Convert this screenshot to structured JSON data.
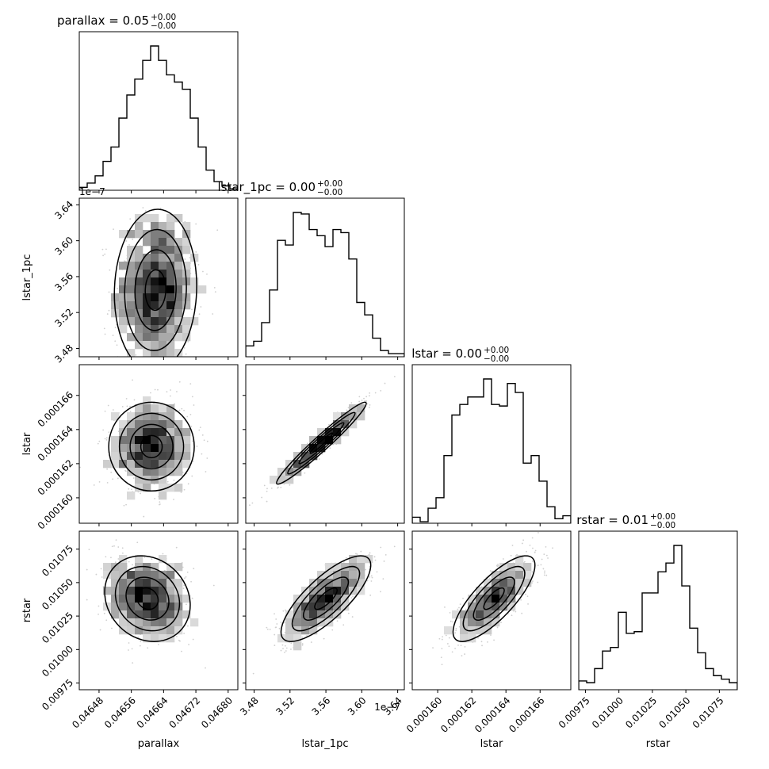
{
  "chart_data": {
    "type": "corner",
    "parameters": [
      "parallax",
      "lstar_1pc",
      "lstar",
      "rstar"
    ],
    "titles": [
      {
        "name": "parallax",
        "median": "0.05",
        "plus": "+0.00",
        "minus": "−0.00"
      },
      {
        "name": "lstar_1pc",
        "median": "0.00",
        "plus": "+0.00",
        "minus": "−0.00"
      },
      {
        "name": "lstar",
        "median": "0.00",
        "plus": "+0.00",
        "minus": "−0.00"
      },
      {
        "name": "rstar",
        "median": "0.01",
        "plus": "+0.00",
        "minus": "−0.00"
      }
    ],
    "axis_labels": [
      "parallax",
      "lstar_1pc",
      "lstar",
      "rstar"
    ],
    "offset_text": "1e−7",
    "ranges": [
      [
        0.046431,
        0.046824
      ],
      [
        3.4707e-07,
        3.6474e-07
      ],
      [
        0.00015851,
        0.0001678
      ],
      [
        0.0097,
        0.010884
      ]
    ],
    "ticks": [
      {
        "values": [
          0.04648,
          0.04656,
          0.04664,
          0.04672,
          0.0468
        ],
        "labels": [
          "0.04648",
          "0.04656",
          "0.04664",
          "0.04672",
          "0.04680"
        ]
      },
      {
        "values": [
          3.48,
          3.52,
          3.56,
          3.6,
          3.64
        ],
        "labels": [
          "3.48",
          "3.52",
          "3.56",
          "3.60",
          "3.64"
        ]
      },
      {
        "values": [
          0.00016,
          0.000162,
          0.000164,
          0.000166
        ],
        "labels": [
          "0.000160",
          "0.000162",
          "0.000164",
          "0.000166"
        ]
      },
      {
        "values": [
          0.00975,
          0.01,
          0.01025,
          0.0105,
          0.01075
        ],
        "labels": [
          "0.00975",
          "0.01000",
          "0.01025",
          "0.01050",
          "0.01075"
        ]
      }
    ],
    "histograms": [
      {
        "parameter": "parallax",
        "bins": 20,
        "heights": [
          0.02,
          0.05,
          0.1,
          0.2,
          0.3,
          0.5,
          0.66,
          0.77,
          0.9,
          1.0,
          0.9,
          0.8,
          0.75,
          0.7,
          0.5,
          0.3,
          0.14,
          0.06,
          0.03,
          0.01
        ]
      },
      {
        "parameter": "lstar_1pc",
        "bins": 20,
        "heights": [
          0.07,
          0.1,
          0.22,
          0.43,
          0.75,
          0.72,
          0.93,
          0.92,
          0.82,
          0.78,
          0.71,
          0.82,
          0.8,
          0.63,
          0.35,
          0.27,
          0.12,
          0.04,
          0.02,
          0.02
        ]
      },
      {
        "parameter": "lstar",
        "bins": 20,
        "heights": [
          0.04,
          0.01,
          0.1,
          0.17,
          0.45,
          0.72,
          0.79,
          0.84,
          0.84,
          0.96,
          0.79,
          0.78,
          0.93,
          0.87,
          0.4,
          0.45,
          0.28,
          0.11,
          0.03,
          0.05
        ]
      },
      {
        "parameter": "rstar",
        "bins": 20,
        "heights": [
          0.05,
          0.04,
          0.12,
          0.22,
          0.24,
          0.44,
          0.32,
          0.33,
          0.55,
          0.55,
          0.67,
          0.72,
          0.82,
          0.59,
          0.35,
          0.21,
          0.12,
          0.08,
          0.06,
          0.04
        ]
      }
    ],
    "pairs": [
      {
        "x": "parallax",
        "y": "lstar_1pc",
        "center": [
          0.04662,
          3.545e-07
        ],
        "spread": [
          5.1e-05,
          4.5e-09
        ],
        "correlation": 0.05
      },
      {
        "x": "parallax",
        "y": "lstar",
        "center": [
          0.04661,
          0.000163
        ],
        "spread": [
          5.3e-05,
          1.3e-06
        ],
        "correlation": 0.0
      },
      {
        "x": "lstar_1pc",
        "y": "lstar",
        "center": [
          3.555e-07,
          0.0001632
        ],
        "spread": [
          2.5e-09,
          1.2e-06
        ],
        "correlation": 0.97
      },
      {
        "x": "parallax",
        "y": "rstar",
        "center": [
          0.0466,
          0.01038
        ],
        "spread": [
          5.3e-05,
          0.00016
        ],
        "correlation": -0.15
      },
      {
        "x": "lstar_1pc",
        "y": "rstar",
        "center": [
          3.56e-07,
          0.01038
        ],
        "spread": [
          2.5e-09,
          0.00016
        ],
        "correlation": 0.78
      },
      {
        "x": "lstar",
        "y": "rstar",
        "center": [
          0.0001633,
          0.01038
        ],
        "spread": [
          1.2e-06,
          0.00016
        ],
        "correlation": 0.78
      }
    ]
  }
}
